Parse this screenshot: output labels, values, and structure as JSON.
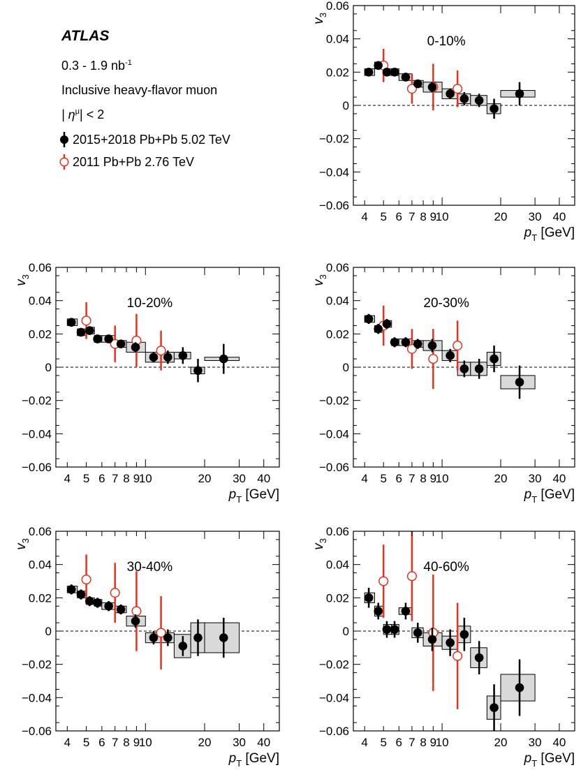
{
  "header": {
    "experiment": "ATLAS",
    "luminosity": "0.3 - 1.9 nb",
    "luminosity_sup": "-1",
    "observable": "Inclusive heavy-flavor muon",
    "eta_text": "| η",
    "eta_sup": "μ",
    "eta_cut": "| < 2"
  },
  "legend": [
    {
      "label": "2015+2018 Pb+Pb 5.02 TeV",
      "marker": "filled-circle",
      "color": "#000000"
    },
    {
      "label": "2011 Pb+Pb 2.76 TeV",
      "marker": "open-circle",
      "color": "#e8321e"
    }
  ],
  "axes": {
    "ylabel": "v",
    "ylabel_sub": "3",
    "xlabel": "p",
    "xlabel_sub": "T",
    "xlabel_unit": "[GeV]",
    "ylim": [
      -0.06,
      0.06
    ],
    "xlim": [
      3.5,
      48
    ],
    "x_scale": "log",
    "yticks": [
      "0.06",
      "0.04",
      "0.02",
      "0",
      "−0.02",
      "−0.04",
      "−0.06"
    ],
    "xticks": [
      "4",
      "5",
      "6",
      "7",
      "8",
      "9",
      "10",
      "20",
      "30",
      "40"
    ]
  },
  "chart_data": [
    {
      "type": "scatter",
      "centrality": "0-10%",
      "series": [
        {
          "name": "2015+2018 Pb+Pb 5.02 TeV",
          "points": [
            {
              "x": 4.2,
              "y": 0.02,
              "stat": 0.002,
              "sys": 0.002,
              "xlo": 4.0,
              "xhi": 4.5
            },
            {
              "x": 4.7,
              "y": 0.024,
              "stat": 0.002,
              "sys": 0.002,
              "xlo": 4.5,
              "xhi": 5.0
            },
            {
              "x": 5.2,
              "y": 0.02,
              "stat": 0.002,
              "sys": 0.002,
              "xlo": 5.0,
              "xhi": 5.5
            },
            {
              "x": 5.7,
              "y": 0.02,
              "stat": 0.002,
              "sys": 0.002,
              "xlo": 5.5,
              "xhi": 6.0
            },
            {
              "x": 6.5,
              "y": 0.017,
              "stat": 0.002,
              "sys": 0.002,
              "xlo": 6.0,
              "xhi": 7.0
            },
            {
              "x": 7.5,
              "y": 0.013,
              "stat": 0.002,
              "sys": 0.002,
              "xlo": 7.0,
              "xhi": 8.0
            },
            {
              "x": 8.9,
              "y": 0.011,
              "stat": 0.003,
              "sys": 0.003,
              "xlo": 8.0,
              "xhi": 10.0
            },
            {
              "x": 11,
              "y": 0.007,
              "stat": 0.003,
              "sys": 0.003,
              "xlo": 10,
              "xhi": 12
            },
            {
              "x": 13,
              "y": 0.004,
              "stat": 0.004,
              "sys": 0.003,
              "xlo": 12,
              "xhi": 14
            },
            {
              "x": 15.5,
              "y": 0.003,
              "stat": 0.004,
              "sys": 0.003,
              "xlo": 14,
              "xhi": 17
            },
            {
              "x": 18.5,
              "y": -0.002,
              "stat": 0.006,
              "sys": 0.003,
              "xlo": 17,
              "xhi": 20
            },
            {
              "x": 25,
              "y": 0.007,
              "stat": 0.007,
              "sys": 0.002,
              "xlo": 20,
              "xhi": 30
            }
          ]
        },
        {
          "name": "2011 Pb+Pb 2.76 TeV",
          "points": [
            {
              "x": 5.0,
              "y": 0.024,
              "stat": 0.01
            },
            {
              "x": 7.0,
              "y": 0.01,
              "stat": 0.009
            },
            {
              "x": 9.0,
              "y": 0.011,
              "stat": 0.014
            },
            {
              "x": 12.0,
              "y": 0.01,
              "stat": 0.011
            }
          ]
        }
      ]
    },
    {
      "type": "scatter",
      "centrality": "10-20%",
      "series": [
        {
          "name": "2015+2018 Pb+Pb 5.02 TeV",
          "points": [
            {
              "x": 4.2,
              "y": 0.027,
              "stat": 0.002,
              "sys": 0.002,
              "xlo": 4.0,
              "xhi": 4.5
            },
            {
              "x": 4.7,
              "y": 0.021,
              "stat": 0.002,
              "sys": 0.002,
              "xlo": 4.5,
              "xhi": 5.0
            },
            {
              "x": 5.2,
              "y": 0.022,
              "stat": 0.002,
              "sys": 0.002,
              "xlo": 5.0,
              "xhi": 5.5
            },
            {
              "x": 5.7,
              "y": 0.017,
              "stat": 0.002,
              "sys": 0.002,
              "xlo": 5.5,
              "xhi": 6.0
            },
            {
              "x": 6.5,
              "y": 0.017,
              "stat": 0.002,
              "sys": 0.002,
              "xlo": 6.0,
              "xhi": 7.0
            },
            {
              "x": 7.5,
              "y": 0.014,
              "stat": 0.002,
              "sys": 0.002,
              "xlo": 7.0,
              "xhi": 8.0
            },
            {
              "x": 8.9,
              "y": 0.012,
              "stat": 0.003,
              "sys": 0.003,
              "xlo": 8.0,
              "xhi": 10.0
            },
            {
              "x": 11,
              "y": 0.006,
              "stat": 0.003,
              "sys": 0.003,
              "xlo": 10,
              "xhi": 12
            },
            {
              "x": 13,
              "y": 0.006,
              "stat": 0.004,
              "sys": 0.003,
              "xlo": 12,
              "xhi": 14
            },
            {
              "x": 15.5,
              "y": 0.007,
              "stat": 0.005,
              "sys": 0.002,
              "xlo": 14,
              "xhi": 17
            },
            {
              "x": 18.5,
              "y": -0.002,
              "stat": 0.007,
              "sys": 0.002,
              "xlo": 17,
              "xhi": 20
            },
            {
              "x": 25,
              "y": 0.005,
              "stat": 0.009,
              "sys": 0.001,
              "xlo": 20,
              "xhi": 30
            }
          ]
        },
        {
          "name": "2011 Pb+Pb 2.76 TeV",
          "points": [
            {
              "x": 5.0,
              "y": 0.028,
              "stat": 0.011
            },
            {
              "x": 7.0,
              "y": 0.014,
              "stat": 0.011
            },
            {
              "x": 9.0,
              "y": 0.016,
              "stat": 0.016
            },
            {
              "x": 12.0,
              "y": 0.01,
              "stat": 0.012
            }
          ]
        }
      ]
    },
    {
      "type": "scatter",
      "centrality": "20-30%",
      "series": [
        {
          "name": "2015+2018 Pb+Pb 5.02 TeV",
          "points": [
            {
              "x": 4.2,
              "y": 0.029,
              "stat": 0.003,
              "sys": 0.002,
              "xlo": 4.0,
              "xhi": 4.5
            },
            {
              "x": 4.7,
              "y": 0.023,
              "stat": 0.003,
              "sys": 0.002,
              "xlo": 4.5,
              "xhi": 5.0
            },
            {
              "x": 5.2,
              "y": 0.026,
              "stat": 0.003,
              "sys": 0.002,
              "xlo": 5.0,
              "xhi": 5.5
            },
            {
              "x": 5.7,
              "y": 0.015,
              "stat": 0.003,
              "sys": 0.002,
              "xlo": 5.5,
              "xhi": 6.0
            },
            {
              "x": 6.5,
              "y": 0.015,
              "stat": 0.003,
              "sys": 0.002,
              "xlo": 6.0,
              "xhi": 7.0
            },
            {
              "x": 7.5,
              "y": 0.014,
              "stat": 0.003,
              "sys": 0.002,
              "xlo": 7.0,
              "xhi": 8.0
            },
            {
              "x": 8.9,
              "y": 0.013,
              "stat": 0.004,
              "sys": 0.003,
              "xlo": 8.0,
              "xhi": 10.0
            },
            {
              "x": 11,
              "y": 0.007,
              "stat": 0.004,
              "sys": 0.003,
              "xlo": 10,
              "xhi": 12
            },
            {
              "x": 13,
              "y": -0.001,
              "stat": 0.005,
              "sys": 0.004,
              "xlo": 12,
              "xhi": 14
            },
            {
              "x": 15.5,
              "y": -0.001,
              "stat": 0.006,
              "sys": 0.004,
              "xlo": 14,
              "xhi": 17
            },
            {
              "x": 18.5,
              "y": 0.005,
              "stat": 0.008,
              "sys": 0.004,
              "xlo": 17,
              "xhi": 20
            },
            {
              "x": 25,
              "y": -0.009,
              "stat": 0.01,
              "sys": 0.004,
              "xlo": 20,
              "xhi": 30
            }
          ]
        },
        {
          "name": "2011 Pb+Pb 2.76 TeV",
          "points": [
            {
              "x": 5.0,
              "y": 0.025,
              "stat": 0.012
            },
            {
              "x": 7.0,
              "y": 0.011,
              "stat": 0.012
            },
            {
              "x": 9.0,
              "y": 0.005,
              "stat": 0.018
            },
            {
              "x": 12.0,
              "y": 0.013,
              "stat": 0.015
            }
          ]
        }
      ]
    },
    {
      "type": "scatter",
      "centrality": "30-40%",
      "series": [
        {
          "name": "2015+2018 Pb+Pb 5.02 TeV",
          "points": [
            {
              "x": 4.2,
              "y": 0.025,
              "stat": 0.003,
              "sys": 0.002,
              "xlo": 4.0,
              "xhi": 4.5
            },
            {
              "x": 4.7,
              "y": 0.022,
              "stat": 0.003,
              "sys": 0.002,
              "xlo": 4.5,
              "xhi": 5.0
            },
            {
              "x": 5.2,
              "y": 0.018,
              "stat": 0.003,
              "sys": 0.002,
              "xlo": 5.0,
              "xhi": 5.5
            },
            {
              "x": 5.7,
              "y": 0.017,
              "stat": 0.003,
              "sys": 0.002,
              "xlo": 5.5,
              "xhi": 6.0
            },
            {
              "x": 6.5,
              "y": 0.015,
              "stat": 0.003,
              "sys": 0.002,
              "xlo": 6.0,
              "xhi": 7.0
            },
            {
              "x": 7.5,
              "y": 0.013,
              "stat": 0.003,
              "sys": 0.002,
              "xlo": 7.0,
              "xhi": 8.0
            },
            {
              "x": 8.9,
              "y": 0.006,
              "stat": 0.004,
              "sys": 0.003,
              "xlo": 8.0,
              "xhi": 10.0
            },
            {
              "x": 11,
              "y": -0.004,
              "stat": 0.004,
              "sys": 0.003,
              "xlo": 10,
              "xhi": 12
            },
            {
              "x": 13,
              "y": -0.004,
              "stat": 0.005,
              "sys": 0.003,
              "xlo": 12,
              "xhi": 14
            },
            {
              "x": 15.5,
              "y": -0.009,
              "stat": 0.006,
              "sys": 0.007,
              "xlo": 14,
              "xhi": 17
            },
            {
              "x": 18.5,
              "y": -0.004,
              "stat": 0.011,
              "sys": 0.009,
              "xlo": 17,
              "xhi": 20
            },
            {
              "x": 25,
              "y": -0.004,
              "stat": 0.012,
              "sys": 0.009,
              "xlo": 20,
              "xhi": 30
            }
          ]
        },
        {
          "name": "2011 Pb+Pb 2.76 TeV",
          "points": [
            {
              "x": 5.0,
              "y": 0.031,
              "stat": 0.015
            },
            {
              "x": 7.0,
              "y": 0.023,
              "stat": 0.018
            },
            {
              "x": 9.0,
              "y": 0.012,
              "stat": 0.024
            },
            {
              "x": 12.0,
              "y": -0.001,
              "stat": 0.022
            }
          ]
        }
      ]
    },
    {
      "type": "scatter",
      "centrality": "40-60%",
      "series": [
        {
          "name": "2015+2018 Pb+Pb 5.02 TeV",
          "points": [
            {
              "x": 4.2,
              "y": 0.02,
              "stat": 0.006,
              "sys": 0.003,
              "xlo": 4.0,
              "xhi": 4.5
            },
            {
              "x": 4.7,
              "y": 0.012,
              "stat": 0.005,
              "sys": 0.003,
              "xlo": 4.5,
              "xhi": 5.0
            },
            {
              "x": 5.2,
              "y": 0.001,
              "stat": 0.005,
              "sys": 0.003,
              "xlo": 5.0,
              "xhi": 5.5
            },
            {
              "x": 5.7,
              "y": 0.001,
              "stat": 0.005,
              "sys": 0.003,
              "xlo": 5.5,
              "xhi": 6.0
            },
            {
              "x": 6.5,
              "y": 0.012,
              "stat": 0.005,
              "sys": 0.002,
              "xlo": 6.0,
              "xhi": 7.0
            },
            {
              "x": 7.5,
              "y": -0.001,
              "stat": 0.006,
              "sys": 0.003,
              "xlo": 7.0,
              "xhi": 8.0
            },
            {
              "x": 8.9,
              "y": -0.005,
              "stat": 0.007,
              "sys": 0.004,
              "xlo": 8.0,
              "xhi": 10.0
            },
            {
              "x": 11,
              "y": -0.007,
              "stat": 0.008,
              "sys": 0.004,
              "xlo": 10,
              "xhi": 12
            },
            {
              "x": 13,
              "y": -0.002,
              "stat": 0.01,
              "sys": 0.005,
              "xlo": 12,
              "xhi": 14
            },
            {
              "x": 15.5,
              "y": -0.016,
              "stat": 0.01,
              "sys": 0.006,
              "xlo": 14,
              "xhi": 17
            },
            {
              "x": 18.5,
              "y": -0.046,
              "stat": 0.014,
              "sys": 0.007,
              "xlo": 17,
              "xhi": 20
            },
            {
              "x": 25,
              "y": -0.034,
              "stat": 0.017,
              "sys": 0.008,
              "xlo": 20,
              "xhi": 30
            }
          ]
        },
        {
          "name": "2011 Pb+Pb 2.76 TeV",
          "points": [
            {
              "x": 5.0,
              "y": 0.03,
              "stat": 0.022
            },
            {
              "x": 7.0,
              "y": 0.033,
              "stat": 0.027
            },
            {
              "x": 9.0,
              "y": -0.001,
              "stat": 0.035
            },
            {
              "x": 12.0,
              "y": -0.015,
              "stat": 0.032
            }
          ]
        }
      ]
    }
  ]
}
